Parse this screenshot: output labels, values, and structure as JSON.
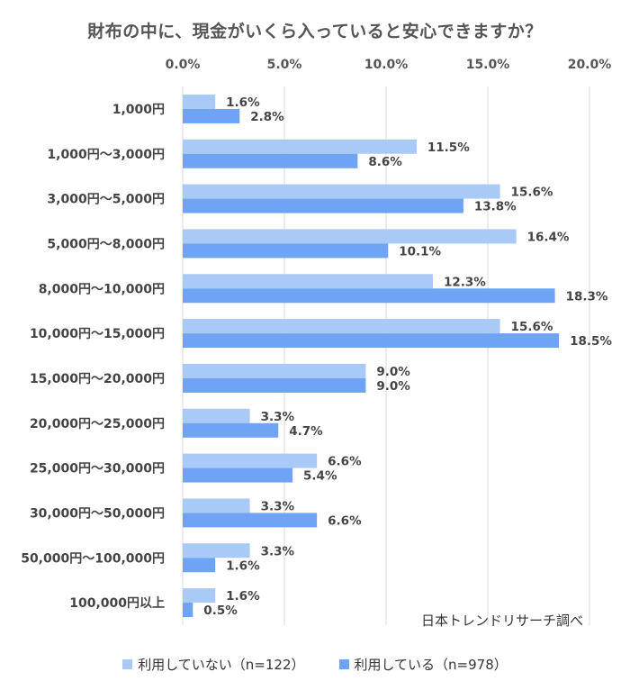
{
  "chart_data": {
    "type": "bar",
    "orientation": "horizontal",
    "title": "財布の中に、現金がいくら入っていると安心できますか？",
    "categories": [
      "1,000円",
      "1,000円～3,000円",
      "3,000円～5,000円",
      "5,000円～8,000円",
      "8,000円～10,000円",
      "10,000円～15,000円",
      "15,000円～20,000円",
      "20,000円～25,000円",
      "25,000円～30,000円",
      "30,000円～50,000円",
      "50,000円～100,000円",
      "100,000円以上"
    ],
    "series": [
      {
        "name": "利用していない（n=122）",
        "color": "#a9c9f7",
        "values": [
          1.6,
          11.5,
          15.6,
          16.4,
          12.3,
          15.6,
          9.0,
          3.3,
          6.6,
          3.3,
          3.3,
          1.6
        ],
        "labels": [
          "1.6%",
          "11.5%",
          "15.6%",
          "16.4%",
          "12.3%",
          "15.6%",
          "9.0%",
          "3.3%",
          "6.6%",
          "3.3%",
          "3.3%",
          "1.6%"
        ]
      },
      {
        "name": "利用している（n=978）",
        "color": "#6fa3f3",
        "values": [
          2.8,
          8.6,
          13.8,
          10.1,
          18.3,
          18.5,
          9.0,
          4.7,
          5.4,
          6.6,
          1.6,
          0.5
        ],
        "labels": [
          "2.8%",
          "8.6%",
          "13.8%",
          "10.1%",
          "18.3%",
          "18.5%",
          "9.0%",
          "4.7%",
          "5.4%",
          "6.6%",
          "1.6%",
          "0.5%"
        ]
      }
    ],
    "xlim": [
      0,
      20
    ],
    "xticks": [
      "0.0%",
      "5.0%",
      "10.0%",
      "15.0%",
      "20.0%"
    ],
    "grid": true,
    "axis_position": "top",
    "legend_position": "bottom",
    "source_note": "日本トレンドリサーチ調べ"
  }
}
